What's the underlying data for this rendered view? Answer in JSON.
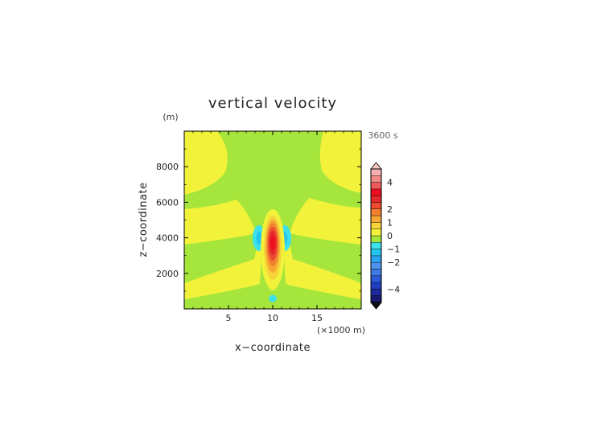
{
  "chart_data": {
    "type": "heatmap",
    "title": "vertical velocity",
    "xlabel": "x−coordinate",
    "ylabel": "z−coordinate",
    "x_unit": "(×1000 m)",
    "y_unit": "(m)",
    "time_label": "3600 s",
    "xlim": [
      0,
      20
    ],
    "ylim": [
      0,
      10000
    ],
    "x_ticks": [
      5,
      10,
      15
    ],
    "y_ticks": [
      2000,
      4000,
      6000,
      8000
    ],
    "x_tick_labels": [
      "5",
      "10",
      "15"
    ],
    "y_tick_labels": [
      "2000",
      "4000",
      "6000",
      "8000"
    ],
    "colorbar": {
      "levels": [
        -5,
        -4.5,
        -4,
        -3.5,
        -3,
        -2.5,
        -2,
        -1.5,
        -1,
        -0.5,
        0,
        0.5,
        1,
        1.5,
        2,
        2.5,
        3,
        3.5,
        4,
        4.5,
        5
      ],
      "colors": [
        "#1a1a6e",
        "#1c2a9c",
        "#1f3fc0",
        "#2a5ad6",
        "#3f7be6",
        "#4f93ee",
        "#2aa6f0",
        "#22c4f0",
        "#3ee0ea",
        "#a6e63c",
        "#f2f23a",
        "#f7d43a",
        "#f7a832",
        "#f08030",
        "#ec4a30",
        "#e6262a",
        "#ee0e1e",
        "#ef5a5a",
        "#f28a8a",
        "#f6b0b0"
      ],
      "tick_values": [
        4,
        2,
        1,
        0,
        -1,
        -2,
        -4
      ],
      "tick_labels": [
        "4",
        "2",
        "1",
        "0",
        "−1",
        "−2",
        "−4"
      ]
    },
    "field_regions": [
      {
        "value": 0.25,
        "description": "background positive band",
        "color": "#f2f23a"
      },
      {
        "value": -0.25,
        "description": "background negative band",
        "color": "#a6e63c"
      },
      {
        "value": 3.0,
        "x": 10,
        "z": 3500,
        "description": "central updraft maximum"
      },
      {
        "value": -1.2,
        "x": 8.3,
        "z": 4000,
        "description": "left downdraft"
      },
      {
        "value": -1.2,
        "x": 11.6,
        "z": 4000,
        "description": "right downdraft"
      },
      {
        "value": -0.8,
        "x": 10,
        "z": 550,
        "description": "near-surface minimum"
      }
    ],
    "grid": false
  }
}
